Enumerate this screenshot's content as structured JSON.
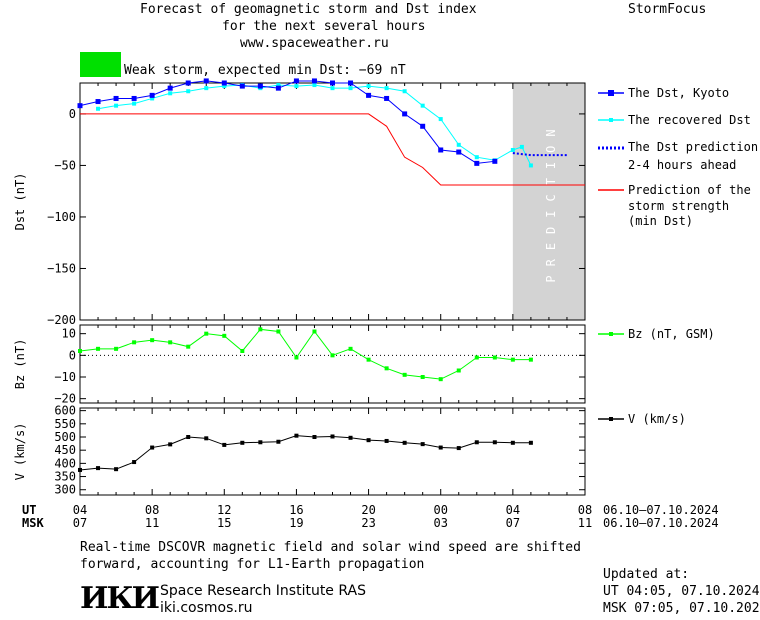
{
  "header": {
    "title_line1": "Forecast of geomagnetic storm and Dst index",
    "title_line2": "for the next several hours",
    "title_line3": "www.spaceweather.ru",
    "brand": "StormFocus"
  },
  "storm_status": {
    "text": "Weak storm, expected min Dst: −69 nT",
    "color": "#00e000"
  },
  "footer": {
    "note_line1": "Real-time DSCOVR magnetic field and solar wind speed are shifted",
    "note_line2": "forward, accounting for L1-Earth propagation",
    "org_logo": "ИКИ",
    "org_name": "Space Research Institute RAS",
    "org_url": "iki.cosmos.ru",
    "updated_label": "Updated at:",
    "updated_ut": "UT   04:05, 07.10.2024",
    "updated_msk": "MSK 07:05, 07.10.2024"
  },
  "time_axis": {
    "ut_label": "UT",
    "msk_label": "MSK",
    "ut_ticks": [
      "04",
      "08",
      "12",
      "16",
      "20",
      "00",
      "04",
      "08"
    ],
    "msk_ticks": [
      "07",
      "11",
      "15",
      "19",
      "23",
      "03",
      "07",
      "11"
    ],
    "ut_date_range": "06.10–07.10.2024",
    "msk_date_range": "06.10–07.10.2024"
  },
  "colors": {
    "dst_kyoto": "#0000ff",
    "dst_recovered": "#00ffff",
    "prediction_line": "#0000ff",
    "storm_strength": "#ff0000",
    "bz": "#00ff00",
    "v": "#000000",
    "prediction_band": "#d3d3d3"
  },
  "chart_data": [
    {
      "type": "line",
      "panel": "dst",
      "ylabel": "Dst (nT)",
      "ylim": [
        -200,
        30
      ],
      "yticks": [
        0,
        -50,
        -100,
        -150,
        -200
      ],
      "x_unit": "hours UT from 06.10.2024 04:00",
      "xlim": [
        0,
        28
      ],
      "prediction_band_label": "PREDICTION",
      "prediction_band": [
        24,
        28
      ],
      "legend": [
        "The Dst, Kyoto",
        "The recovered Dst",
        "The Dst prediction",
        "2-4 hours ahead",
        "Prediction of the",
        "storm strength",
        "(min Dst)"
      ],
      "series": [
        {
          "name": "The Dst, Kyoto",
          "x": [
            0,
            1,
            2,
            3,
            4,
            5,
            6,
            7,
            8,
            9,
            10,
            11,
            12,
            13,
            14,
            15,
            16,
            17,
            18,
            19,
            20,
            21,
            22,
            23
          ],
          "values": [
            8,
            12,
            15,
            15,
            18,
            25,
            30,
            32,
            30,
            27,
            27,
            25,
            32,
            32,
            30,
            30,
            18,
            15,
            0,
            -12,
            -35,
            -37,
            -48,
            -46
          ]
        },
        {
          "name": "The recovered Dst",
          "x": [
            1,
            2,
            3,
            4,
            5,
            6,
            7,
            8,
            9,
            10,
            11,
            12,
            13,
            14,
            15,
            16,
            17,
            18,
            19,
            20,
            21,
            22,
            23,
            24,
            24.5
          ],
          "values": [
            5,
            8,
            10,
            15,
            20,
            22,
            25,
            27,
            28,
            25,
            28,
            27,
            28,
            25,
            25,
            27,
            25,
            22,
            8,
            -5,
            -30,
            -42,
            -45,
            -35,
            -32
          ],
          "extra_point": {
            "x": 25,
            "value": -50
          }
        },
        {
          "name": "The Dst prediction 2-4 hours ahead",
          "x": [
            24,
            25,
            26,
            27
          ],
          "values": [
            -38,
            -40,
            -40,
            -40
          ]
        },
        {
          "name": "Prediction of the storm strength (min Dst)",
          "x": [
            0,
            16,
            17,
            18,
            19,
            20,
            21,
            28
          ],
          "values": [
            0,
            0,
            -12,
            -42,
            -52,
            -69,
            -69,
            -69
          ]
        }
      ]
    },
    {
      "type": "line",
      "panel": "bz",
      "ylabel": "Bz (nT)",
      "ylim": [
        -22,
        14
      ],
      "yticks": [
        10,
        0,
        -10,
        -20
      ],
      "legend": [
        "Bz (nT, GSM)"
      ],
      "series": [
        {
          "name": "Bz (nT, GSM)",
          "x": [
            0,
            1,
            2,
            3,
            4,
            5,
            6,
            7,
            8,
            9,
            10,
            11,
            12,
            13,
            14,
            15,
            16,
            17,
            18,
            19,
            20,
            21,
            22,
            23,
            24,
            25
          ],
          "values": [
            2,
            3,
            3,
            6,
            7,
            6,
            4,
            10,
            9,
            2,
            12,
            11,
            -1,
            11,
            0,
            3,
            -2,
            -6,
            -9,
            -10,
            -11,
            -7,
            -1,
            -1,
            -2,
            -2
          ]
        }
      ]
    },
    {
      "type": "line",
      "panel": "v",
      "ylabel": "V (km/s)",
      "ylim": [
        280,
        610
      ],
      "yticks": [
        600,
        550,
        500,
        450,
        400,
        350,
        300
      ],
      "legend": [
        "V (km/s)"
      ],
      "series": [
        {
          "name": "V (km/s)",
          "x": [
            0,
            1,
            2,
            3,
            4,
            5,
            6,
            7,
            8,
            9,
            10,
            11,
            12,
            13,
            14,
            15,
            16,
            17,
            18,
            19,
            20,
            21,
            22,
            23,
            24,
            25
          ],
          "values": [
            375,
            382,
            378,
            405,
            460,
            472,
            500,
            495,
            470,
            478,
            480,
            482,
            505,
            500,
            502,
            497,
            488,
            485,
            478,
            473,
            460,
            458,
            480,
            480,
            478,
            478
          ]
        }
      ]
    }
  ]
}
